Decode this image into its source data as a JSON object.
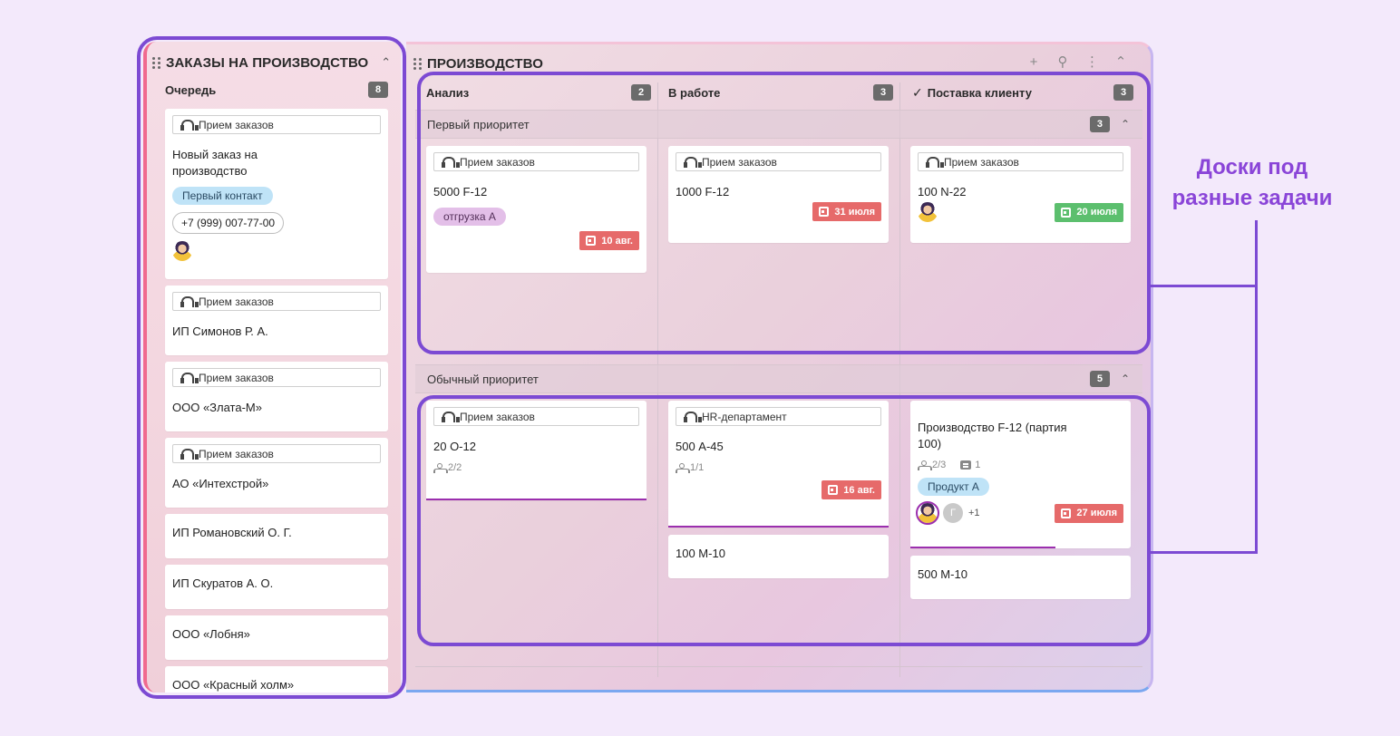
{
  "left_panel": {
    "title": "ЗАКАЗЫ НА ПРОИЗВОДСТВО",
    "queue_title": "Очередь",
    "queue_count": "8",
    "cards": [
      {
        "source": "Прием заказов",
        "title": "Новый заказ на производство",
        "tag": "Первый контакт",
        "phone": "+7 (999) 007-77-00"
      },
      {
        "source": "Прием заказов",
        "title": "ИП Симонов Р. А."
      },
      {
        "source": "Прием заказов",
        "title": "ООО «Злата-М»"
      },
      {
        "source": "Прием заказов",
        "title": "АО «Интехстрой»"
      },
      {
        "title": "ИП Романовский О. Г."
      },
      {
        "title": "ИП Скуратов А. О."
      },
      {
        "title": "ООО «Лобня»"
      },
      {
        "title": "ООО «Красный холм»"
      }
    ]
  },
  "main_panel": {
    "title": "ПРОИЗВОДСТВО",
    "columns": [
      {
        "label": "Анализ",
        "count": "2"
      },
      {
        "label": "В работе",
        "count": "3"
      },
      {
        "label": "Поставка клиенту",
        "count": "3"
      }
    ],
    "groups": [
      {
        "title": "Первый приоритет",
        "count": "3",
        "cards": [
          {
            "source": "Прием заказов",
            "title": "5000 F-12",
            "tag": "отгрузка А",
            "date": "10 авг."
          },
          {
            "source": "Прием заказов",
            "title": "1000 F-12",
            "date": "31 июля"
          },
          {
            "source": "Прием заказов",
            "title": "100 N-22",
            "date": "20 июля"
          }
        ]
      },
      {
        "title": "Обычный приоритет",
        "count": "5",
        "cards": [
          {
            "source": "Прием заказов",
            "title": "20 О-12",
            "subtasks": "2/2"
          },
          {
            "source": "HR-департамент",
            "title": "500 А-45",
            "subtasks": "1/1",
            "date": "16 авг."
          },
          {
            "title": "100 M-10"
          },
          {
            "title": "Производство F-12 (партия 100)",
            "subtasks": "2/3",
            "comments": "1",
            "tag": "Продукт А",
            "extra_avatar": "Г",
            "more": "+1",
            "date": "27 июля"
          },
          {
            "title": "500 M-10"
          }
        ]
      }
    ]
  },
  "annotation": {
    "text": "Доски под разные задачи"
  },
  "colors": {
    "accent_outline": "#7c4ad3",
    "date_red": "#e66a6a",
    "date_green": "#5cbf6e",
    "progress": "#9b2fae"
  },
  "icons": [
    "drag-handle-icon",
    "headset-icon",
    "calendar-icon",
    "subtask-icon",
    "comment-icon",
    "check-icon",
    "plus-icon",
    "link-icon",
    "more-vertical-icon",
    "chevron-up-icon"
  ]
}
